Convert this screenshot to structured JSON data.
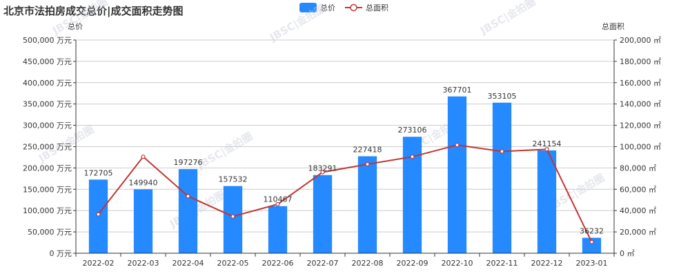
{
  "chart_data": {
    "type": "bar",
    "title": "北京市法拍房成交总价|成交面积走势图",
    "categories": [
      "2022-02",
      "2022-03",
      "2022-04",
      "2022-05",
      "2022-06",
      "2022-07",
      "2022-08",
      "2022-09",
      "2022-10",
      "2022-11",
      "2022-12",
      "2023-01"
    ],
    "series": [
      {
        "name": "总价",
        "kind": "bar",
        "axis": "left",
        "color": "#2589ff",
        "values": [
          172705,
          149940,
          197276,
          157532,
          110467,
          183291,
          227418,
          273106,
          367701,
          353105,
          241154,
          36232
        ]
      },
      {
        "name": "总面积",
        "kind": "line",
        "axis": "right",
        "color": "#c23531",
        "values": [
          36500,
          90500,
          53500,
          34500,
          46000,
          76000,
          83500,
          90500,
          101500,
          95500,
          97500,
          10500
        ]
      }
    ],
    "left_axis": {
      "name": "总价",
      "unit_suffix": " 万元",
      "ylim": [
        0,
        500000
      ],
      "ticks": [
        "0 万元",
        "50,000 万元",
        "100,000 万元",
        "150,000 万元",
        "200,000 万元",
        "250,000 万元",
        "300,000 万元",
        "350,000 万元",
        "400,000 万元",
        "450,000 万元",
        "500,000 万元"
      ]
    },
    "right_axis": {
      "name": "总面积",
      "unit_suffix": " ㎡",
      "ylim": [
        0,
        200000
      ],
      "ticks": [
        "0 ㎡",
        "20,000 ㎡",
        "40,000 ㎡",
        "60,000 ㎡",
        "80,000 ㎡",
        "100,000 ㎡",
        "120,000 ㎡",
        "140,000 ㎡",
        "160,000 ㎡",
        "180,000 ㎡",
        "200,000 ㎡"
      ]
    },
    "legend": {
      "placement": "top-center",
      "items": [
        {
          "label": "总价",
          "shape": "rect",
          "color": "#2589ff"
        },
        {
          "label": "总面积",
          "shape": "line-circle",
          "color": "#c23531"
        }
      ]
    },
    "grid": true,
    "watermark_text": "JBSC|金拍圈",
    "colors": {
      "axis": "#333333",
      "grid": "#cccccc",
      "bar": "#2589ff",
      "line": "#c23531"
    }
  }
}
